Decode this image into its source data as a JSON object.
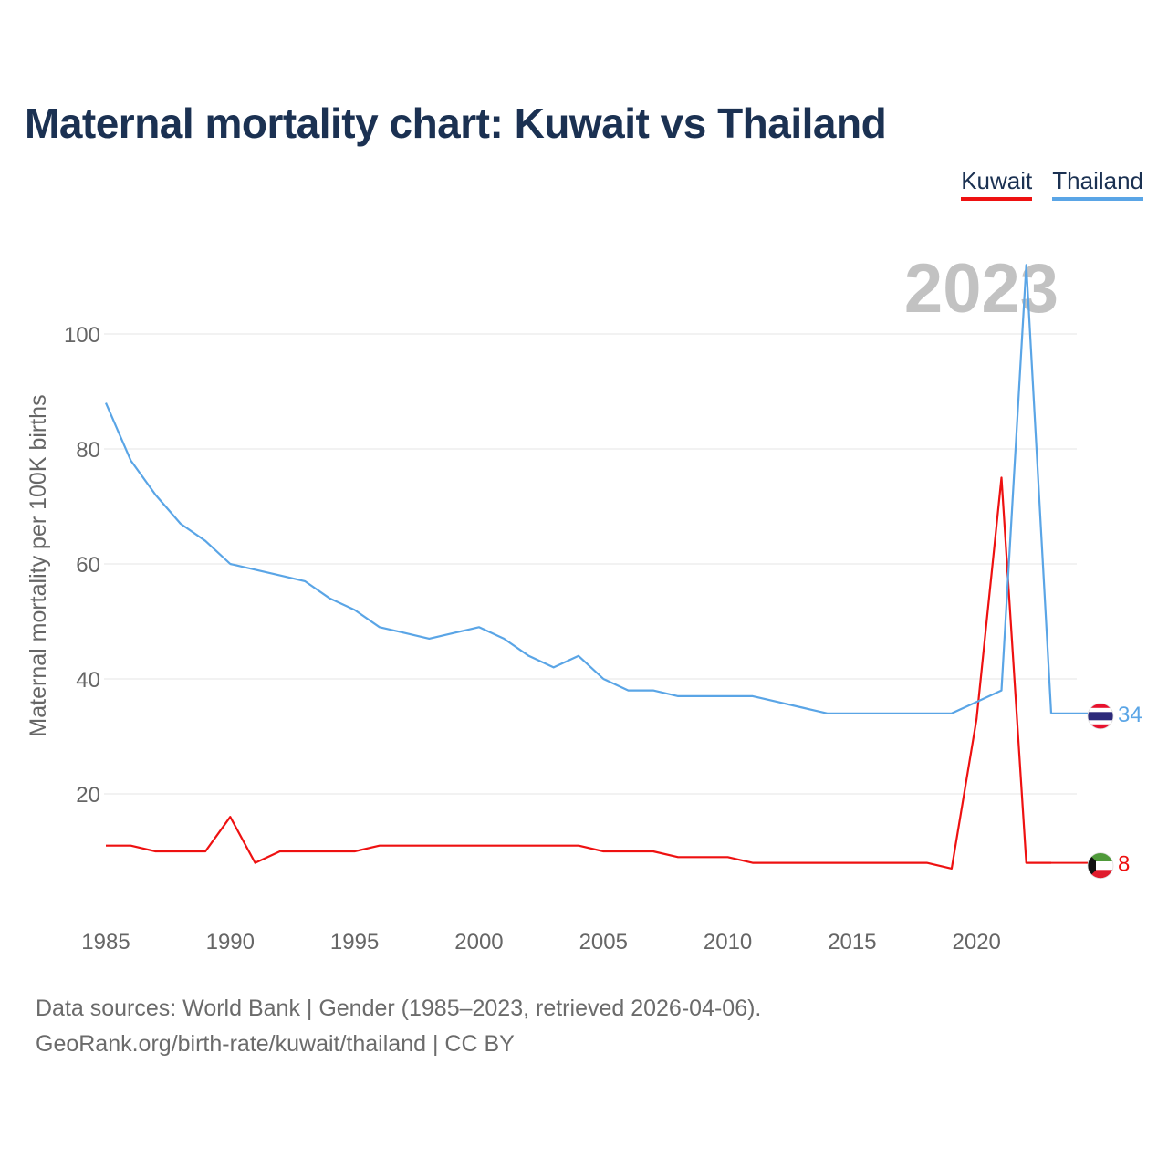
{
  "title": "Maternal mortality chart: Kuwait vs Thailand",
  "legend": [
    {
      "label": "Kuwait",
      "color": "#ee1111"
    },
    {
      "label": "Thailand",
      "color": "#5aa5e6"
    }
  ],
  "footer": {
    "line1": "Data sources: World Bank | Gender (1985–2023, retrieved 2026-04-06).",
    "line2": "GeoRank.org/birth-rate/kuwait/thailand | CC BY"
  },
  "chart_data": {
    "type": "line",
    "title": "Maternal mortality chart: Kuwait vs Thailand",
    "ylabel": "Maternal mortality per 100K births",
    "xlabel": "",
    "xlim": [
      1985,
      2023
    ],
    "ylim": [
      0,
      110
    ],
    "year_label": "2023",
    "x_ticks": [
      1985,
      1990,
      1995,
      2000,
      2005,
      2010,
      2015,
      2020
    ],
    "y_ticks": [
      20,
      40,
      60,
      80,
      100
    ],
    "x": [
      1985,
      1986,
      1987,
      1988,
      1989,
      1990,
      1991,
      1992,
      1993,
      1994,
      1995,
      1996,
      1997,
      1998,
      1999,
      2000,
      2001,
      2002,
      2003,
      2004,
      2005,
      2006,
      2007,
      2008,
      2009,
      2010,
      2011,
      2012,
      2013,
      2014,
      2015,
      2016,
      2017,
      2018,
      2019,
      2020,
      2021,
      2022,
      2023
    ],
    "series": [
      {
        "name": "Kuwait",
        "color": "#ee1111",
        "end_label": "8",
        "values": [
          11,
          11,
          10,
          10,
          10,
          16,
          8,
          10,
          10,
          10,
          10,
          11,
          11,
          11,
          11,
          11,
          11,
          11,
          11,
          11,
          10,
          10,
          10,
          9,
          9,
          9,
          8,
          8,
          8,
          8,
          8,
          8,
          8,
          8,
          7,
          33,
          75,
          8,
          8
        ]
      },
      {
        "name": "Thailand",
        "color": "#5aa5e6",
        "end_label": "34",
        "values": [
          88,
          78,
          72,
          67,
          64,
          60,
          59,
          58,
          57,
          54,
          52,
          49,
          48,
          47,
          48,
          49,
          47,
          44,
          42,
          44,
          40,
          38,
          38,
          37,
          37,
          37,
          37,
          36,
          35,
          34,
          34,
          34,
          34,
          34,
          34,
          36,
          38,
          112,
          34
        ]
      }
    ]
  }
}
